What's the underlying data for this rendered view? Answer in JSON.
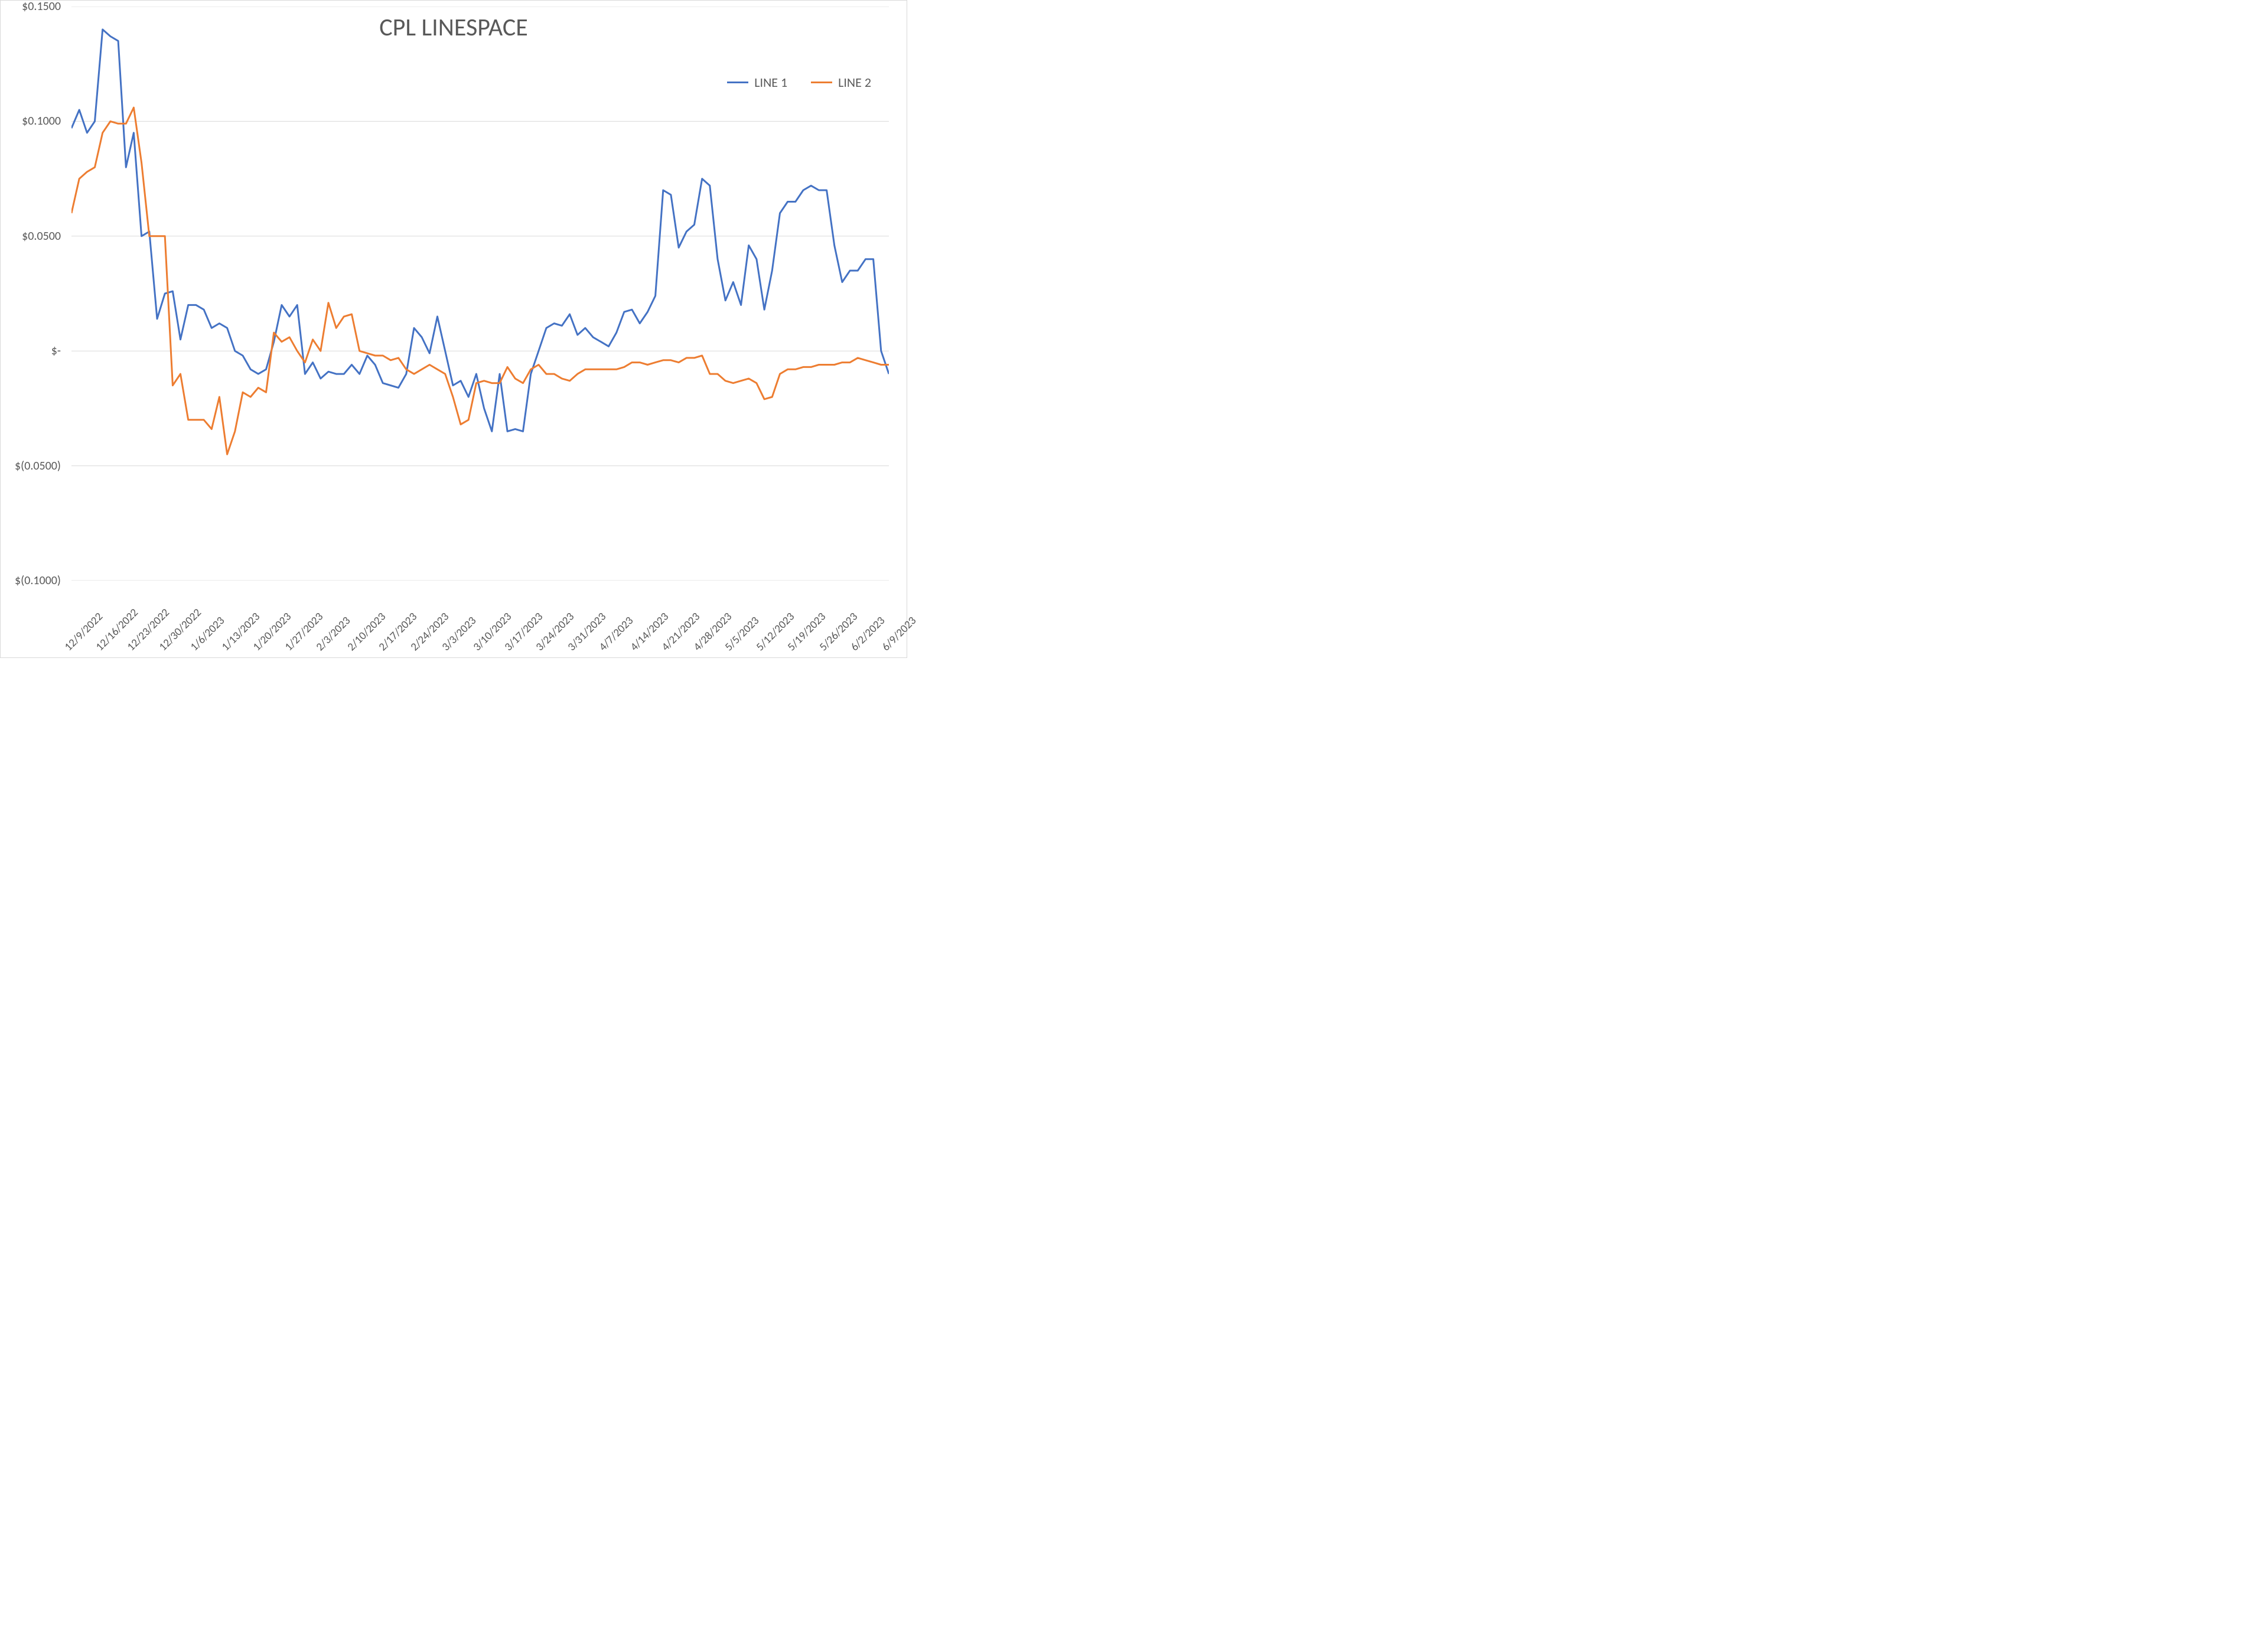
{
  "chart": {
    "type": "line",
    "title": "CPL LINESPACE",
    "title_fontsize": 42,
    "title_color": "#595959",
    "background_color": "#ffffff",
    "border_color": "#d9d9d9",
    "grid_color": "#d9d9d9",
    "axis_label_color": "#595959",
    "axis_label_fontsize": 20,
    "line_width": 3,
    "y": {
      "min": -0.1,
      "max": 0.15,
      "tick_step": 0.05,
      "ticks": [
        {
          "v": 0.15,
          "label": "$0.1500"
        },
        {
          "v": 0.1,
          "label": "$0.1000"
        },
        {
          "v": 0.05,
          "label": "$0.0500"
        },
        {
          "v": 0.0,
          "label": "$-"
        },
        {
          "v": -0.05,
          "label": "$(0.0500)"
        },
        {
          "v": -0.1,
          "label": "$(0.1000)"
        }
      ]
    },
    "x": {
      "labels": [
        "12/9/2022",
        "12/16/2022",
        "12/23/2022",
        "12/30/2022",
        "1/6/2023",
        "1/13/2023",
        "1/20/2023",
        "1/27/2023",
        "2/3/2023",
        "2/10/2023",
        "2/17/2023",
        "2/24/2023",
        "3/3/2023",
        "3/10/2023",
        "3/17/2023",
        "3/24/2023",
        "3/31/2023",
        "4/7/2023",
        "4/14/2023",
        "4/21/2023",
        "4/28/2023",
        "5/5/2023",
        "5/12/2023",
        "5/19/2023",
        "5/26/2023",
        "6/2/2023",
        "6/9/2023"
      ]
    },
    "legend": {
      "position": "top-right",
      "fontsize": 22,
      "color": "#595959"
    },
    "series": [
      {
        "name": "LINE 1",
        "color": "#4472c4",
        "values": [
          0.097,
          0.105,
          0.095,
          0.1,
          0.14,
          0.137,
          0.135,
          0.08,
          0.095,
          0.05,
          0.052,
          0.014,
          0.025,
          0.026,
          0.005,
          0.02,
          0.02,
          0.018,
          0.01,
          0.012,
          0.01,
          0.0,
          -0.002,
          -0.008,
          -0.01,
          -0.008,
          0.004,
          0.02,
          0.015,
          0.02,
          -0.01,
          -0.005,
          -0.012,
          -0.009,
          -0.01,
          -0.01,
          -0.006,
          -0.01,
          -0.002,
          -0.006,
          -0.014,
          -0.015,
          -0.016,
          -0.01,
          0.01,
          0.006,
          -0.001,
          0.015,
          0.0,
          -0.015,
          -0.013,
          -0.02,
          -0.01,
          -0.025,
          -0.035,
          -0.01,
          -0.035,
          -0.034,
          -0.035,
          -0.01,
          0.0,
          0.01,
          0.012,
          0.011,
          0.016,
          0.007,
          0.01,
          0.006,
          0.004,
          0.002,
          0.008,
          0.017,
          0.018,
          0.012,
          0.017,
          0.024,
          0.07,
          0.068,
          0.045,
          0.052,
          0.055,
          0.075,
          0.072,
          0.04,
          0.022,
          0.03,
          0.02,
          0.046,
          0.04,
          0.018,
          0.035,
          0.06,
          0.065,
          0.065,
          0.07,
          0.072,
          0.07,
          0.07,
          0.046,
          0.03,
          0.035,
          0.035,
          0.04,
          0.04,
          0.0,
          -0.01
        ]
      },
      {
        "name": "LINE 2",
        "color": "#ed7d31",
        "values": [
          0.06,
          0.075,
          0.078,
          0.08,
          0.095,
          0.1,
          0.099,
          0.099,
          0.106,
          0.082,
          0.05,
          0.05,
          0.05,
          -0.015,
          -0.01,
          -0.03,
          -0.03,
          -0.03,
          -0.034,
          -0.02,
          -0.045,
          -0.035,
          -0.018,
          -0.02,
          -0.016,
          -0.018,
          0.008,
          0.004,
          0.006,
          0.0,
          -0.005,
          0.005,
          0.0,
          0.021,
          0.01,
          0.015,
          0.016,
          0.0,
          -0.001,
          -0.002,
          -0.002,
          -0.004,
          -0.003,
          -0.008,
          -0.01,
          -0.008,
          -0.006,
          -0.008,
          -0.01,
          -0.02,
          -0.032,
          -0.03,
          -0.014,
          -0.013,
          -0.014,
          -0.014,
          -0.007,
          -0.012,
          -0.014,
          -0.008,
          -0.006,
          -0.01,
          -0.01,
          -0.012,
          -0.013,
          -0.01,
          -0.008,
          -0.008,
          -0.008,
          -0.008,
          -0.008,
          -0.007,
          -0.005,
          -0.005,
          -0.006,
          -0.005,
          -0.004,
          -0.004,
          -0.005,
          -0.003,
          -0.003,
          -0.002,
          -0.01,
          -0.01,
          -0.013,
          -0.014,
          -0.013,
          -0.012,
          -0.014,
          -0.021,
          -0.02,
          -0.01,
          -0.008,
          -0.008,
          -0.007,
          -0.007,
          -0.006,
          -0.006,
          -0.006,
          -0.005,
          -0.005,
          -0.003,
          -0.004,
          -0.005,
          -0.006,
          -0.006
        ]
      }
    ]
  }
}
